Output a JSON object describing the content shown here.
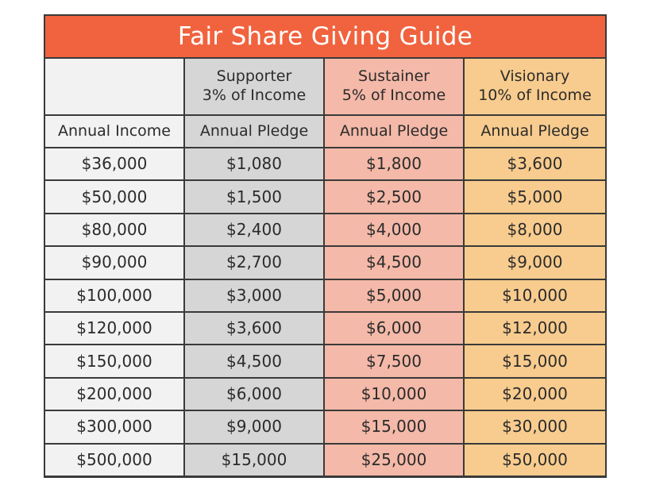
{
  "title": "Fair Share Giving Guide",
  "tiers": [
    {
      "name": "Supporter",
      "rate": "3% of Income"
    },
    {
      "name": "Sustainer",
      "rate": "5% of Income"
    },
    {
      "name": "Visionary",
      "rate": "10% of Income"
    }
  ],
  "column_headers": [
    "Annual Income",
    "Annual Pledge",
    "Annual Pledge",
    "Annual Pledge"
  ],
  "rows": [
    [
      "$36,000",
      "$1,080",
      "$1,800",
      "$3,600"
    ],
    [
      "$50,000",
      "$1,500",
      "$2,500",
      "$5,000"
    ],
    [
      "$80,000",
      "$2,400",
      "$4,000",
      "$8,000"
    ],
    [
      "$90,000",
      "$2,700",
      "$4,500",
      "$9,000"
    ],
    [
      "$100,000",
      "$3,000",
      "$5,000",
      "$10,000"
    ],
    [
      "$120,000",
      "$3,600",
      "$6,000",
      "$12,000"
    ],
    [
      "$150,000",
      "$4,500",
      "$7,500",
      "$15,000"
    ],
    [
      "$200,000",
      "$6,000",
      "$10,000",
      "$20,000"
    ],
    [
      "$300,000",
      "$9,000",
      "$15,000",
      "$30,000"
    ],
    [
      "$500,000",
      "$15,000",
      "$25,000",
      "$50,000"
    ]
  ],
  "colors": {
    "title_bar": "#f0633e",
    "income_column": "#f2f2f2",
    "supporter_column": "#d6d6d6",
    "sustainer_column": "#f4b9a8",
    "visionary_column": "#f8cc8e",
    "border": "#3a3a3a"
  }
}
